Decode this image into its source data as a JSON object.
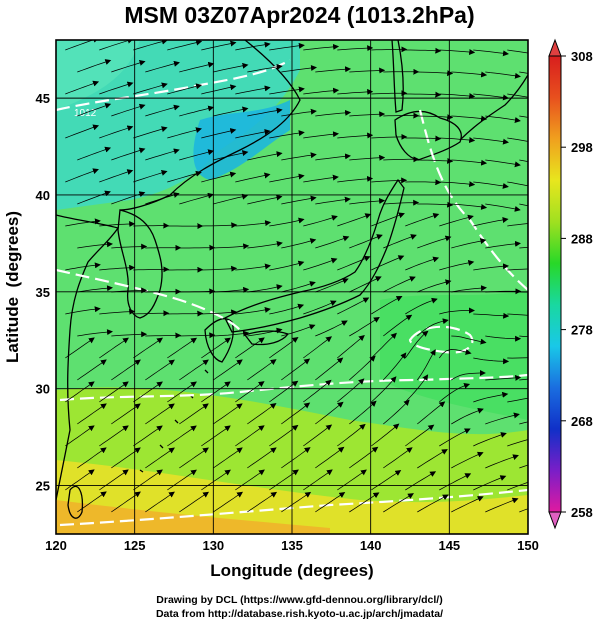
{
  "title": "MSM 03Z07Apr2024 (1013.2hPa)",
  "xaxis": {
    "label": "Longitude (degrees)",
    "range": [
      120,
      150
    ],
    "ticks": [
      120,
      125,
      130,
      135,
      140,
      145,
      150
    ]
  },
  "yaxis": {
    "label": "Latitude  (degrees)",
    "range": [
      22.5,
      48
    ],
    "ticks": [
      25,
      30,
      35,
      40,
      45
    ]
  },
  "colorbar": {
    "range": [
      258,
      308
    ],
    "ticks": [
      258,
      268,
      278,
      288,
      298,
      308
    ],
    "colors": [
      "#e01aa0",
      "#7a1ec8",
      "#1030c8",
      "#1a6ee0",
      "#19c8e8",
      "#19d8a0",
      "#28d828",
      "#a0e020",
      "#e8e61e",
      "#f0a01e",
      "#e8501e",
      "#d81e1e"
    ]
  },
  "contour_labels": [
    "1012"
  ],
  "credits": {
    "line1": "Drawing by DCL (https://www.gfd-dennou.org/library/dcl/)",
    "line2": "Data from http://database.rish.kyoto-u.ac.jp/arch/jmadata/"
  },
  "colors": {
    "land_outline": "#000000",
    "grid": "#000000",
    "isobar": "#ffffff",
    "streamline": "#000000"
  }
}
